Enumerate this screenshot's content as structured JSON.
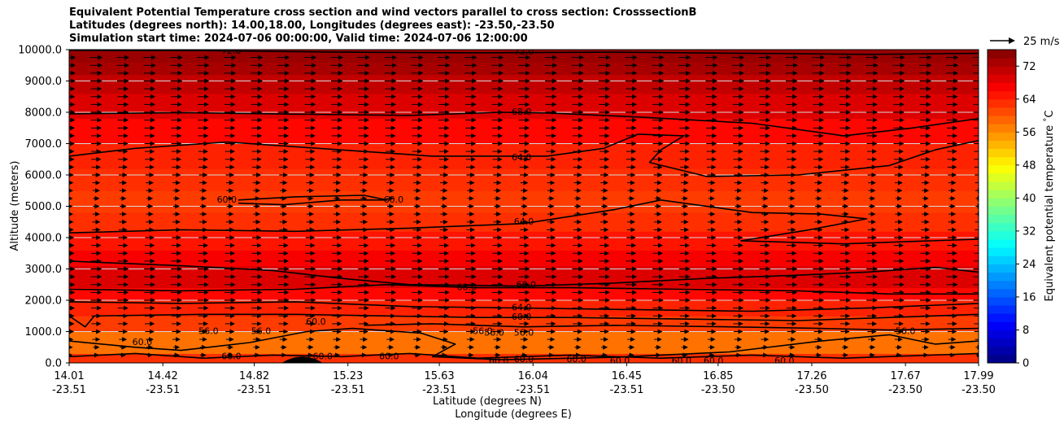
{
  "chart_data": {
    "type": "heatmap",
    "title_lines": [
      "Equivalent Potential Temperature cross section and wind vectors parallel to cross section: CrosssectionB",
      "Latitudes (degrees north): 14.00,18.00, Longitudes (degrees east): -23.50,-23.50",
      "Simulation start time: 2024-07-06 00:00:00, Valid time: 2024-07-06 12:00:00"
    ],
    "ylabel": "Altitude (meters)",
    "xlabel_lines": [
      "Latitude (degrees N)",
      "Longitude (degrees E)"
    ],
    "ylim": [
      0,
      10000
    ],
    "yticks": [
      "0.0",
      "1000.0",
      "2000.0",
      "3000.0",
      "4000.0",
      "5000.0",
      "6000.0",
      "7000.0",
      "8000.0",
      "9000.0",
      "10000.0"
    ],
    "xlim": [
      14.01,
      17.99
    ],
    "xticks": [
      {
        "lat": "14.01",
        "lon": "-23.51"
      },
      {
        "lat": "14.42",
        "lon": "-23.51"
      },
      {
        "lat": "14.82",
        "lon": "-23.51"
      },
      {
        "lat": "15.23",
        "lon": "-23.51"
      },
      {
        "lat": "15.63",
        "lon": "-23.51"
      },
      {
        "lat": "16.04",
        "lon": "-23.51"
      },
      {
        "lat": "16.45",
        "lon": "-23.51"
      },
      {
        "lat": "16.85",
        "lon": "-23.50"
      },
      {
        "lat": "17.26",
        "lon": "-23.50"
      },
      {
        "lat": "17.67",
        "lon": "-23.50"
      },
      {
        "lat": "17.99",
        "lon": "-23.50"
      }
    ],
    "colorbar": {
      "label": "Equivalent potential temperature $^\\circ$C",
      "range": [
        0,
        76
      ],
      "ticks": [
        "0",
        "8",
        "16",
        "24",
        "32",
        "40",
        "48",
        "56",
        "64",
        "72"
      ],
      "colormap": "jet"
    },
    "quiver_key": {
      "label": "25 m/s",
      "speed": 25
    },
    "wind_vectors": {
      "direction": "parallel to cross section, towards increasing latitude",
      "levels_m": [
        250,
        500,
        750,
        1000,
        1250,
        1500,
        1750,
        2000,
        2250,
        2500,
        2750,
        3000,
        3250,
        3500,
        3750,
        4000,
        4250,
        4500,
        4750,
        5000,
        5250,
        5500,
        5750,
        6000,
        6250,
        6500,
        6750,
        7000,
        7250,
        7500,
        7750,
        8000,
        8250,
        8500,
        8750,
        9000,
        9250,
        9500,
        9750
      ],
      "relative_speed": [
        0.4,
        0.45,
        0.55,
        0.65,
        0.7,
        0.7,
        0.75,
        0.8,
        0.8,
        0.8,
        0.8,
        0.8,
        0.75,
        0.7,
        0.7,
        0.65,
        0.6,
        0.55,
        0.5,
        0.45,
        0.45,
        0.5,
        0.55,
        0.6,
        0.65,
        0.7,
        0.7,
        0.75,
        0.75,
        0.75,
        0.8,
        0.8,
        0.8,
        0.8,
        0.8,
        0.85,
        0.85,
        0.9,
        0.9
      ]
    },
    "filled_bands": [
      {
        "zmax": 300,
        "value": 63
      },
      {
        "zmax": 1000,
        "value": 58
      },
      {
        "zmax": 1500,
        "value": 62
      },
      {
        "zmax": 2000,
        "value": 64
      },
      {
        "zmax": 2400,
        "value": 66
      },
      {
        "zmax": 3100,
        "value": 69
      },
      {
        "zmax": 3600,
        "value": 67
      },
      {
        "zmax": 4200,
        "value": 65
      },
      {
        "zmax": 4800,
        "value": 63
      },
      {
        "zmax": 5500,
        "value": 62
      },
      {
        "zmax": 6200,
        "value": 63
      },
      {
        "zmax": 7000,
        "value": 64
      },
      {
        "zmax": 7800,
        "value": 66
      },
      {
        "zmax": 8600,
        "value": 69
      },
      {
        "zmax": 9200,
        "value": 71
      },
      {
        "zmax": 9600,
        "value": 73
      },
      {
        "zmax": 10000,
        "value": 74
      }
    ],
    "contours": [
      {
        "value": 72,
        "points": [
          [
            14.01,
            9980
          ],
          [
            14.6,
            9970
          ],
          [
            15.2,
            9920
          ],
          [
            15.8,
            9900
          ],
          [
            16.4,
            9920
          ],
          [
            17.0,
            9880
          ],
          [
            17.5,
            9850
          ],
          [
            17.99,
            9880
          ]
        ]
      },
      {
        "value": 68,
        "points": [
          [
            14.01,
            7950
          ],
          [
            14.5,
            7990
          ],
          [
            15.0,
            7940
          ],
          [
            15.5,
            7900
          ],
          [
            15.9,
            8000
          ],
          [
            16.1,
            7980
          ],
          [
            16.5,
            7850
          ],
          [
            17.0,
            7650
          ],
          [
            17.4,
            7250
          ],
          [
            17.7,
            7500
          ],
          [
            17.99,
            7800
          ]
        ]
      },
      {
        "value": 64,
        "points": [
          [
            14.01,
            6600
          ],
          [
            14.3,
            6850
          ],
          [
            14.7,
            7050
          ],
          [
            15.1,
            6850
          ],
          [
            15.6,
            6600
          ],
          [
            16.1,
            6600
          ],
          [
            16.35,
            6850
          ],
          [
            16.5,
            7300
          ],
          [
            16.7,
            7250
          ],
          [
            16.6,
            6800
          ],
          [
            16.55,
            6400
          ],
          [
            16.8,
            5950
          ],
          [
            17.2,
            6000
          ],
          [
            17.6,
            6300
          ],
          [
            17.8,
            6800
          ],
          [
            17.99,
            7100
          ]
        ]
      },
      {
        "value": 60,
        "points": [
          [
            14.75,
            5200
          ],
          [
            15.0,
            5300
          ],
          [
            15.3,
            5350
          ],
          [
            15.4,
            5200
          ],
          [
            15.2,
            5200
          ],
          [
            14.95,
            5050
          ],
          [
            14.75,
            5100
          ]
        ]
      },
      {
        "value": 64,
        "points": [
          [
            14.01,
            4150
          ],
          [
            14.5,
            4250
          ],
          [
            15.0,
            4200
          ],
          [
            15.5,
            4300
          ],
          [
            16.0,
            4450
          ],
          [
            16.4,
            4900
          ],
          [
            16.6,
            5200
          ],
          [
            17.0,
            4800
          ],
          [
            17.3,
            4750
          ],
          [
            17.5,
            4600
          ],
          [
            17.25,
            4250
          ],
          [
            16.95,
            3900
          ],
          [
            17.4,
            3800
          ],
          [
            17.99,
            3950
          ]
        ]
      },
      {
        "value": 68,
        "points": [
          [
            14.01,
            3250
          ],
          [
            14.5,
            3100
          ],
          [
            14.9,
            2950
          ],
          [
            15.2,
            2700
          ],
          [
            15.5,
            2500
          ],
          [
            16.0,
            2450
          ],
          [
            16.4,
            2550
          ],
          [
            16.8,
            2700
          ],
          [
            17.2,
            2800
          ],
          [
            17.5,
            2900
          ],
          [
            17.8,
            3050
          ],
          [
            17.99,
            2900
          ]
        ]
      },
      {
        "value": 68,
        "points": [
          [
            14.01,
            2350
          ],
          [
            14.5,
            2300
          ],
          [
            15.0,
            2350
          ],
          [
            15.4,
            2500
          ],
          [
            15.8,
            2400
          ],
          [
            16.2,
            2400
          ],
          [
            16.7,
            2350
          ],
          [
            17.2,
            2300
          ],
          [
            17.6,
            2200
          ],
          [
            17.99,
            2200
          ]
        ]
      },
      {
        "value": 64,
        "points": [
          [
            14.01,
            1950
          ],
          [
            14.5,
            1900
          ],
          [
            15.0,
            1950
          ],
          [
            15.5,
            1800
          ],
          [
            16.0,
            1750
          ],
          [
            16.5,
            1700
          ],
          [
            17.0,
            1650
          ],
          [
            17.5,
            1750
          ],
          [
            17.99,
            1900
          ]
        ]
      },
      {
        "value": 60,
        "points": [
          [
            14.01,
            1500
          ],
          [
            14.08,
            1150
          ],
          [
            14.12,
            1500
          ],
          [
            14.6,
            1550
          ],
          [
            15.0,
            1550
          ],
          [
            15.4,
            1500
          ],
          [
            15.8,
            1450
          ],
          [
            16.2,
            1450
          ],
          [
            16.7,
            1400
          ],
          [
            17.2,
            1350
          ],
          [
            17.6,
            1450
          ],
          [
            17.99,
            1550
          ]
        ]
      },
      {
        "value": 56,
        "points": [
          [
            14.01,
            700
          ],
          [
            14.3,
            500
          ],
          [
            14.5,
            400
          ],
          [
            14.8,
            650
          ],
          [
            15.05,
            1000
          ],
          [
            15.25,
            1100
          ],
          [
            15.55,
            950
          ],
          [
            15.7,
            600
          ],
          [
            15.6,
            200
          ],
          [
            15.9,
            100
          ],
          [
            16.4,
            180
          ],
          [
            16.9,
            350
          ],
          [
            17.3,
            700
          ],
          [
            17.6,
            900
          ],
          [
            17.8,
            600
          ],
          [
            17.99,
            700
          ]
        ]
      },
      {
        "value": 56,
        "points": [
          [
            15.3,
            1200
          ],
          [
            15.6,
            1250
          ],
          [
            16.0,
            1150
          ],
          [
            16.4,
            1200
          ],
          [
            16.9,
            1150
          ],
          [
            17.3,
            1100
          ],
          [
            17.6,
            1050
          ],
          [
            17.99,
            1100
          ]
        ]
      },
      {
        "value": 60,
        "points": [
          [
            14.01,
            200
          ],
          [
            14.3,
            300
          ],
          [
            14.6,
            150
          ],
          [
            14.9,
            250
          ],
          [
            15.2,
            200
          ],
          [
            15.5,
            300
          ],
          [
            15.8,
            150
          ],
          [
            16.2,
            250
          ],
          [
            16.6,
            150
          ],
          [
            17.0,
            250
          ],
          [
            17.4,
            150
          ],
          [
            17.99,
            300
          ]
        ]
      }
    ],
    "contour_labels": [
      {
        "text": "72.0",
        "x": 14.72,
        "z": 9950
      },
      {
        "text": "72.0",
        "x": 16.0,
        "z": 9920
      },
      {
        "text": "68.0",
        "x": 15.99,
        "z": 8000
      },
      {
        "text": "64.0",
        "x": 15.99,
        "z": 6550
      },
      {
        "text": "60.0",
        "x": 14.7,
        "z": 5200
      },
      {
        "text": "60.0",
        "x": 15.43,
        "z": 5200
      },
      {
        "text": "64.0",
        "x": 16.0,
        "z": 4500
      },
      {
        "text": "68.0",
        "x": 15.75,
        "z": 2400
      },
      {
        "text": "68.0",
        "x": 16.01,
        "z": 2480
      },
      {
        "text": "64.0",
        "x": 15.99,
        "z": 1750
      },
      {
        "text": "60.0",
        "x": 15.99,
        "z": 1450
      },
      {
        "text": "60.0",
        "x": 15.09,
        "z": 1300
      },
      {
        "text": "56.0",
        "x": 14.62,
        "z": 1000
      },
      {
        "text": "56.0",
        "x": 14.85,
        "z": 1000
      },
      {
        "text": "56.0",
        "x": 15.82,
        "z": 1000
      },
      {
        "text": "56.0",
        "x": 15.87,
        "z": 950
      },
      {
        "text": "56.0",
        "x": 16.0,
        "z": 950
      },
      {
        "text": "56.0",
        "x": 17.67,
        "z": 1000
      },
      {
        "text": "60.0",
        "x": 14.33,
        "z": 650
      },
      {
        "text": "60.0",
        "x": 14.72,
        "z": 200
      },
      {
        "text": "60.0",
        "x": 15.12,
        "z": 200
      },
      {
        "text": "60.0",
        "x": 15.41,
        "z": 200
      },
      {
        "text": "60.0",
        "x": 15.89,
        "z": 50
      },
      {
        "text": "60.0",
        "x": 16.0,
        "z": 100
      },
      {
        "text": "60.0",
        "x": 16.23,
        "z": 100
      },
      {
        "text": "60.0",
        "x": 16.42,
        "z": 50
      },
      {
        "text": "60.0",
        "x": 16.69,
        "z": 50
      },
      {
        "text": "60.0",
        "x": 16.83,
        "z": 50
      },
      {
        "text": "60.0",
        "x": 17.14,
        "z": 50
      }
    ],
    "terrain": {
      "label": "surface",
      "peak_lat": 15.03,
      "peak_m": 200,
      "half_width_lat": 0.09
    }
  }
}
